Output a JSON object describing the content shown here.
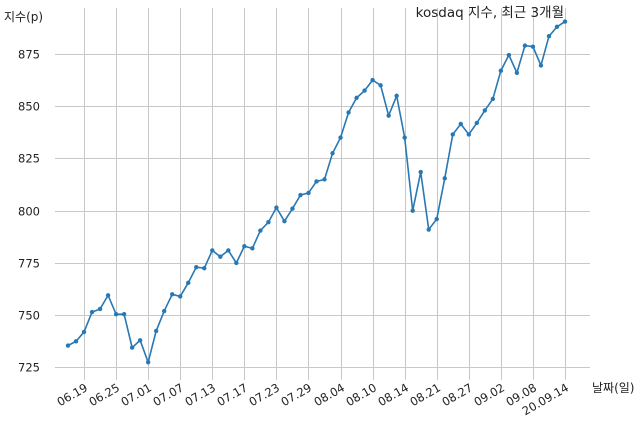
{
  "chart_data": {
    "type": "line",
    "title": "kosdaq 지수, 최근 3개월",
    "xlabel": "날짜(일)",
    "ylabel": "지수(p)",
    "x_ticks": [
      "06.19",
      "06.25",
      "07.01",
      "07.07",
      "07.13",
      "07.17",
      "07.23",
      "07.29",
      "08.04",
      "08.10",
      "08.14",
      "08.21",
      "08.27",
      "09.02",
      "09.08",
      "20.09.14"
    ],
    "y_ticks": [
      725,
      750,
      775,
      800,
      825,
      850,
      875
    ],
    "ylim": [
      719,
      897
    ],
    "grid": true,
    "colors": {
      "series": "#2878b4",
      "grid": "#c8c8c8",
      "text": "#222222"
    },
    "series": [
      {
        "values": [
          735.5,
          737.5,
          742,
          751.5,
          753,
          759.5,
          750.5,
          750.5,
          734.5,
          738,
          727.5,
          742.5,
          752,
          760,
          759,
          765.5,
          773,
          772.5,
          781,
          778,
          781,
          775,
          783,
          782,
          790.5,
          794.5,
          801.5,
          795,
          801,
          807.5,
          808.5,
          814,
          815,
          827.5,
          835,
          847,
          854,
          857.5,
          862.5,
          860,
          845.5,
          855,
          835,
          800,
          818.5,
          791,
          796,
          815.5,
          836.5,
          841.5,
          836.5,
          842,
          848,
          853.5,
          867,
          874.5,
          866,
          879,
          878.5,
          869.5,
          883.5,
          888,
          890.5
        ]
      }
    ]
  }
}
